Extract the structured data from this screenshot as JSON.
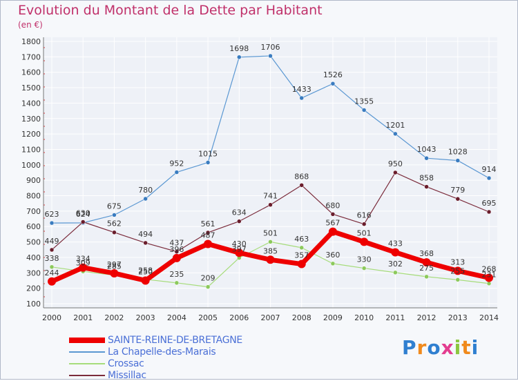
{
  "title": "Evolution du Montant de la Dette par Habitant",
  "subtitle": "(en €)",
  "logo": "Proxiti",
  "colors": {
    "title": "#c0306a",
    "background": "#f6f8fb",
    "grid": "#ffffff",
    "legend_text": "#4a6fd6"
  },
  "chart_data": {
    "type": "line",
    "title": "Evolution du Montant de la Dette par Habitant",
    "ylabel": "(en €)",
    "xlabel": "",
    "x": [
      "2000",
      "2001",
      "2002",
      "2003",
      "2004",
      "2005",
      "2006",
      "2007",
      "2008",
      "2009",
      "2010",
      "2011",
      "2012",
      "2013",
      "2014"
    ],
    "ylim": [
      100,
      1800
    ],
    "yticks": [
      100,
      200,
      300,
      400,
      500,
      600,
      700,
      800,
      900,
      1000,
      1100,
      1200,
      1300,
      1400,
      1500,
      1600,
      1700,
      1800
    ],
    "grid": true,
    "legend_position": "bottom-left",
    "series": [
      {
        "name": "La Chapelle-des-Marais",
        "color": "#5a97d2",
        "marker": "#3a7cc0",
        "values": [
          623,
          624,
          675,
          780,
          952,
          1015,
          1698,
          1706,
          1433,
          1526,
          1355,
          1201,
          1043,
          1028,
          914
        ]
      },
      {
        "name": "Missillac",
        "color": "#7a2a3a",
        "marker": "#6a1d2c",
        "values": [
          449,
          630,
          562,
          494,
          437,
          561,
          634,
          741,
          868,
          680,
          616,
          950,
          858,
          779,
          695
        ]
      },
      {
        "name": "Crossac",
        "color": "#a6dc7a",
        "marker": "#8cc95c",
        "values": [
          338,
          309,
          285,
          258,
          235,
          209,
          397,
          501,
          463,
          360,
          330,
          302,
          275,
          255,
          231
        ]
      },
      {
        "name": "SAINTE-REINE-DE-BRETAGNE",
        "color": "#ee0000",
        "marker": "#ee0000",
        "values": [
          244,
          334,
          297,
          250,
          396,
          487,
          430,
          385,
          357,
          567,
          501,
          433,
          368,
          313,
          268
        ]
      }
    ]
  }
}
